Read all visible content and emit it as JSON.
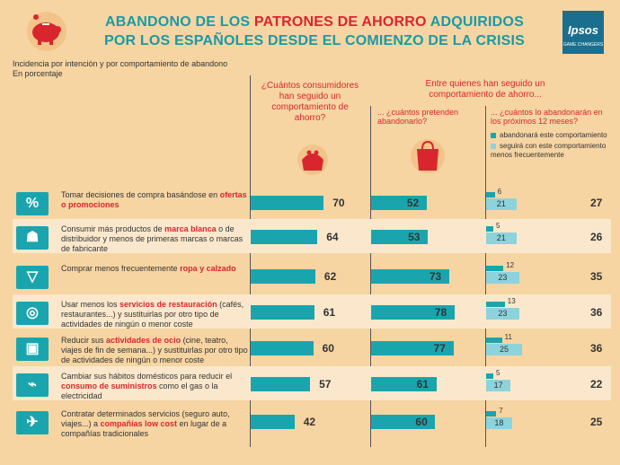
{
  "title_line1_a": "ABANDONO DE LOS ",
  "title_line1_b": "PATRONES DE AHORRO",
  "title_line1_c": " ADQUIRIDOS",
  "title_line2": "POR LOS ESPAÑOLES DESDE EL COMIENZO DE LA CRISIS",
  "logo": {
    "name": "Ipsos",
    "sub": "GAME CHANGERS"
  },
  "subtitle_1": "Incidencia por intención y por comportamiento de abandono",
  "subtitle_2": "En porcentaje",
  "col1_header": "¿Cuántos consumidores han seguido un comportamiento de ahorro?",
  "col23_header": "Entre quienes han seguido un comportamiento de ahorro...",
  "col2_header": "... ¿cuántos pretenden abandonarlo?",
  "col3_header": "... ¿cuántos lo abandonarán en los próximos 12 meses?",
  "legend": {
    "a": "abandonará este comportamiento",
    "b": "seguirá con este comportamiento menos frecuentemente"
  },
  "colors": {
    "teal": "#1aa5ae",
    "light_teal": "#8cd3dc",
    "red": "#d9262e",
    "bg": "#f6d5a3"
  },
  "rows": [
    {
      "icon": "percent-tag-icon",
      "label_a": "Tomar decisiones de compra basándose en ",
      "label_hl": "ofertas o promociones",
      "label_c": ""
    },
    {
      "icon": "basket-icon",
      "label_a": "Consumir más productos de ",
      "label_hl": "marca blanca",
      "label_c": " o de distribuidor y menos de primeras marcas o marcas de fabricante"
    },
    {
      "icon": "tshirt-icon",
      "label_a": "Comprar menos frecuentemente ",
      "label_hl": "ropa y calzado",
      "label_c": ""
    },
    {
      "icon": "plate-cutlery-icon",
      "label_a": "Usar menos los ",
      "label_hl": "servicios de restauración",
      "label_c": " (cafés, restaurantes...) y sustituirlas por otro tipo de actividades de ningún o menor coste"
    },
    {
      "icon": "clapperboard-icon",
      "label_a": "Reducir sus ",
      "label_hl": "actividades de ocio",
      "label_c": " (cine, teatro, viajes de fin de semana...) y sustituirlas por otro tipo de actividades de ningún o menor coste"
    },
    {
      "icon": "plug-icon",
      "label_a": "Cambiar sus hábitos domésticos para reducir el ",
      "label_hl": "consumo de suministros",
      "label_c": " como el gas o la electricidad"
    },
    {
      "icon": "airplane-icon",
      "label_a": "Contratar determinados servicios (seguro auto, viajes...) a ",
      "label_hl": "compañías low cost",
      "label_c": " en lugar de a compañías tradicionales"
    }
  ],
  "chart_data": {
    "type": "bar",
    "categories": [
      "Tomar decisiones de compra basándose en ofertas o promociones",
      "Consumir más productos de marca blanca o de distribuidor y menos de primeras marcas o marcas de fabricante",
      "Comprar menos frecuentemente ropa y calzado",
      "Usar menos los servicios de restauración (cafés, restaurantes...) y sustituirlas por otro tipo de actividades de ningún o menor coste",
      "Reducir sus actividades de ocio (cine, teatro, viajes de fin de semana...) y sustituirlas por otro tipo de actividades de ningún o menor coste",
      "Cambiar sus hábitos domésticos para reducir el consumo de suministros como el gas o la electricidad",
      "Contratar determinados servicios (seguro auto, viajes...) a compañías low cost en lugar de a compañías tradicionales"
    ],
    "series": [
      {
        "values": [
          70,
          64,
          62,
          61,
          60,
          57,
          42
        ]
      },
      {
        "values": [
          52,
          53,
          73,
          78,
          77,
          61,
          60
        ]
      },
      {
        "name": "abandonará este comportamiento",
        "values": [
          6,
          5,
          12,
          13,
          11,
          5,
          7
        ]
      },
      {
        "name": "seguirá con este comportamiento menos frecuentemente",
        "values": [
          21,
          21,
          23,
          23,
          25,
          17,
          18
        ]
      }
    ],
    "col3_totals": [
      27,
      26,
      35,
      36,
      36,
      22,
      25
    ]
  }
}
